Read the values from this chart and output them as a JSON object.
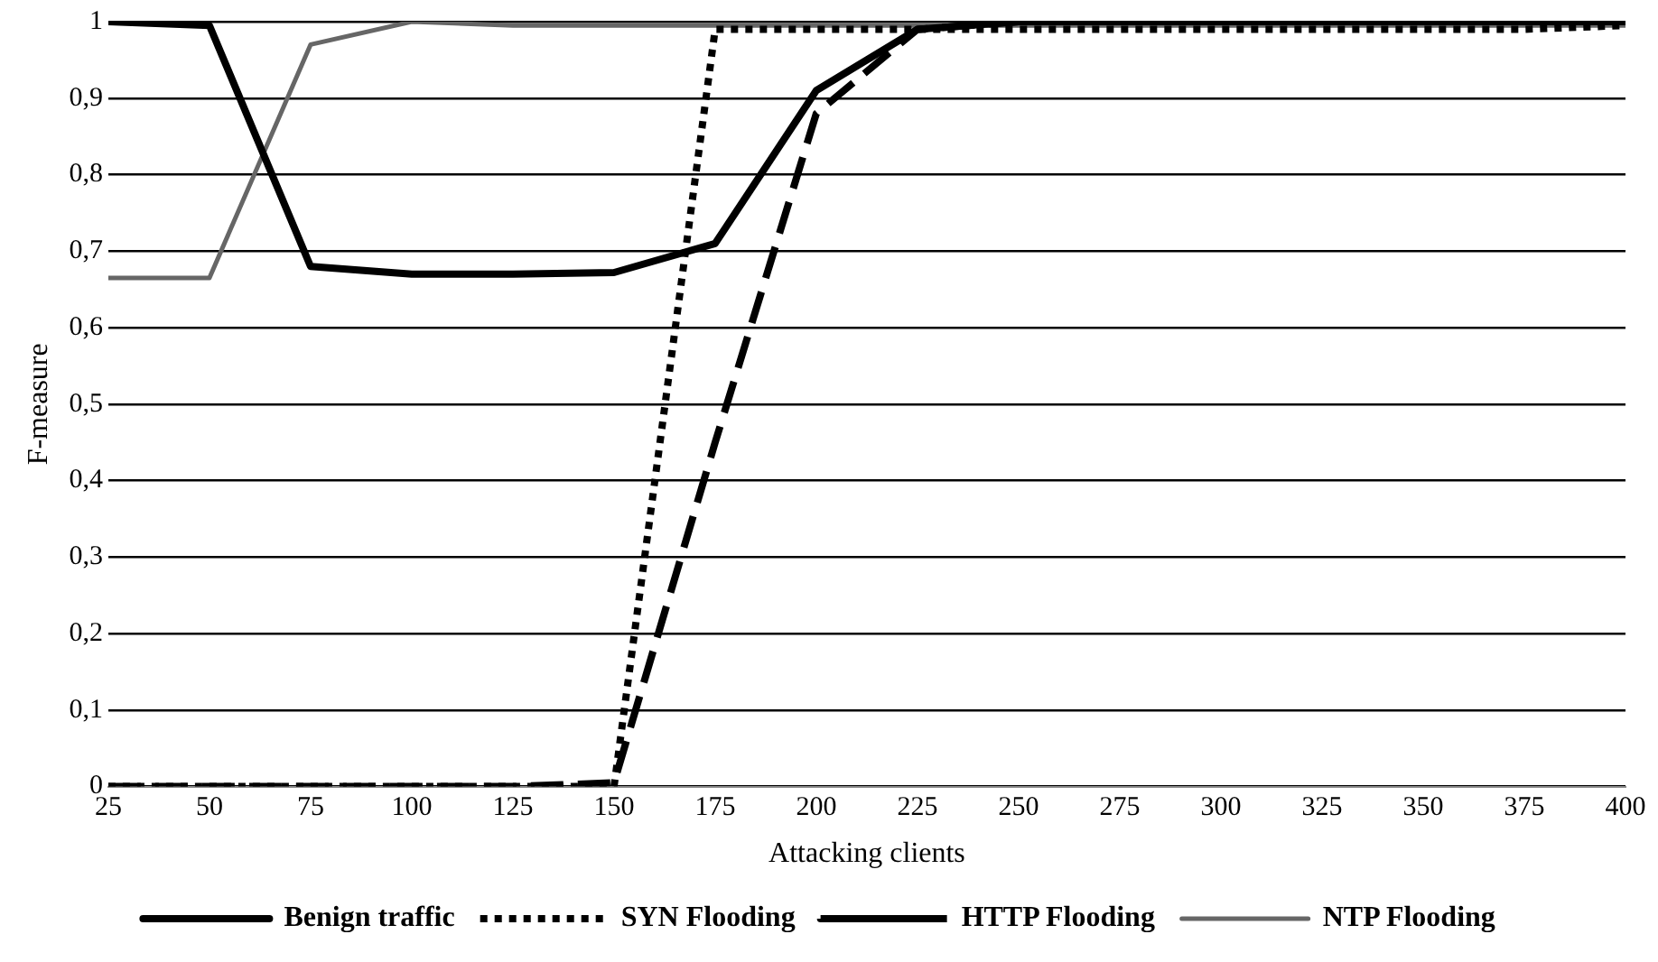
{
  "chart_data": {
    "type": "line",
    "xlabel": "Attacking clients",
    "ylabel": "F-measure",
    "x": [
      25,
      50,
      75,
      100,
      125,
      150,
      175,
      200,
      225,
      250,
      275,
      300,
      325,
      350,
      375,
      400
    ],
    "xlim": [
      25,
      400
    ],
    "xticks": [
      25,
      50,
      75,
      100,
      125,
      150,
      175,
      200,
      225,
      250,
      275,
      300,
      325,
      350,
      375,
      400
    ],
    "ylim": [
      0,
      1
    ],
    "yticks": [
      {
        "value": 0,
        "label": "0"
      },
      {
        "value": 0.1,
        "label": "0,1"
      },
      {
        "value": 0.2,
        "label": "0,2"
      },
      {
        "value": 0.3,
        "label": "0,3"
      },
      {
        "value": 0.4,
        "label": "0,4"
      },
      {
        "value": 0.5,
        "label": "0,5"
      },
      {
        "value": 0.6,
        "label": "0,6"
      },
      {
        "value": 0.7,
        "label": "0,7"
      },
      {
        "value": 0.8,
        "label": "0,8"
      },
      {
        "value": 0.9,
        "label": "0,9"
      },
      {
        "value": 1,
        "label": "1"
      }
    ],
    "grid": "y",
    "legend": "bottom",
    "marker": "none",
    "series": [
      {
        "name": "Benign traffic",
        "color": "#000000",
        "line_style": "solid",
        "values": [
          1,
          0.995,
          0.68,
          0.67,
          0.67,
          0.672,
          0.71,
          0.91,
          0.99,
          1,
          1,
          1,
          1,
          1,
          1,
          1
        ]
      },
      {
        "name": "SYN Flooding",
        "color": "#000000",
        "line_style": "dotted",
        "values": [
          0,
          0,
          0,
          0,
          0,
          0,
          0.99,
          0.99,
          0.99,
          0.99,
          0.99,
          0.99,
          0.99,
          0.99,
          0.99,
          0.995
        ]
      },
      {
        "name": "HTTP Flooding",
        "color": "#000000",
        "line_style": "dashed",
        "values": [
          0,
          0,
          0,
          0,
          0,
          0.005,
          0.45,
          0.88,
          0.99,
          1,
          1,
          1,
          1,
          1,
          1,
          1
        ]
      },
      {
        "name": "NTP Flooding",
        "color": "#666666",
        "line_style": "solid",
        "values": [
          0.665,
          0.665,
          0.97,
          1,
          0.995,
          0.995,
          0.995,
          0.995,
          0.995,
          0.995,
          0.995,
          0.995,
          0.995,
          0.995,
          0.995,
          0.995
        ]
      }
    ]
  }
}
